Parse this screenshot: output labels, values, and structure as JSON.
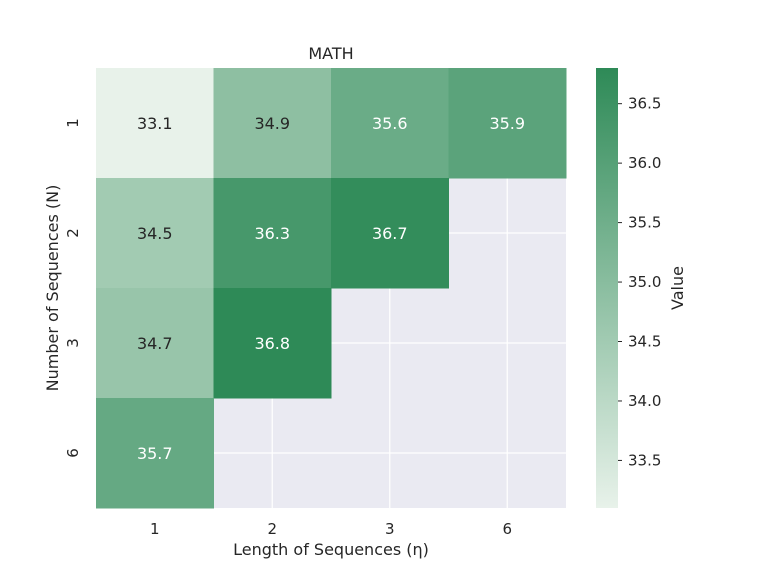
{
  "chart_data": {
    "type": "heatmap",
    "title": "MATH",
    "xlabel": "Length of Sequences (η)",
    "ylabel": "Number of Sequences (N)",
    "x_categories": [
      "1",
      "2",
      "3",
      "6"
    ],
    "y_categories": [
      "1",
      "2",
      "3",
      "6"
    ],
    "values": [
      [
        33.1,
        34.9,
        35.6,
        35.9
      ],
      [
        34.5,
        36.3,
        36.7,
        null
      ],
      [
        34.7,
        36.8,
        null,
        null
      ],
      [
        35.7,
        null,
        null,
        null
      ]
    ],
    "colorbar": {
      "label": "Value",
      "range": [
        33.1,
        36.8
      ],
      "ticks": [
        "33.5",
        "34.0",
        "34.5",
        "35.0",
        "35.5",
        "36.0",
        "36.5"
      ]
    },
    "colors": {
      "low": "#e8f2ea",
      "high": "#2e8a57",
      "missing_background": "#eaeaf2",
      "grid": "#ffffff",
      "dark_text": "#262626",
      "light_text": "#ffffff"
    },
    "grid": true
  }
}
